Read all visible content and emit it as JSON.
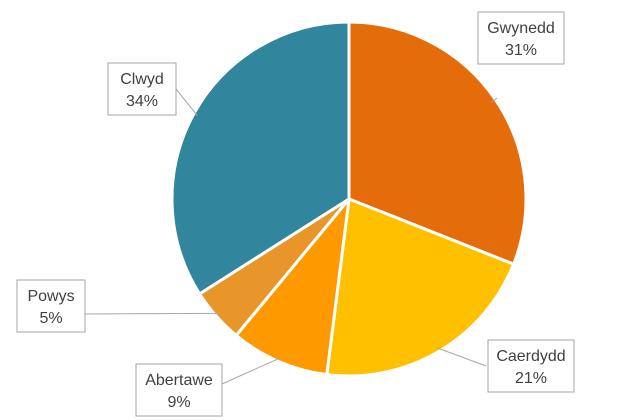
{
  "chart_data": {
    "type": "pie",
    "title": "",
    "legend": "none",
    "start_angle_deg": 0,
    "direction": "clockwise",
    "slices": [
      {
        "label": "Gwynedd",
        "value": 31,
        "value_label": "31%",
        "color": "#E46C0A"
      },
      {
        "label": "Caerdydd",
        "value": 21,
        "value_label": "21%",
        "color": "#FFC000"
      },
      {
        "label": "Abertawe",
        "value": 9,
        "value_label": "9%",
        "color": "#FF9900"
      },
      {
        "label": "Powys",
        "value": 5,
        "value_label": "5%",
        "color": "#E8962A"
      },
      {
        "label": "Clwyd",
        "value": 34,
        "value_label": "34%",
        "color": "#31859C"
      }
    ]
  }
}
